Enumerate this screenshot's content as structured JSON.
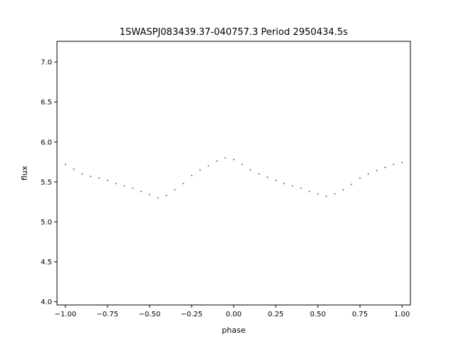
{
  "chart_data": {
    "type": "scatter",
    "title": "1SWASPJ083439.37-040757.3 Period 2950434.5s",
    "xlabel": "phase",
    "ylabel": "flux",
    "xlim": [
      -1.05,
      1.05
    ],
    "ylim": [
      3.96,
      7.26
    ],
    "xticks": [
      -1.0,
      -0.75,
      -0.5,
      -0.25,
      0.0,
      0.25,
      0.5,
      0.75,
      1.0
    ],
    "xtick_labels": [
      "−1.00",
      "−0.75",
      "−0.50",
      "−0.25",
      "0.00",
      "0.25",
      "0.50",
      "0.75",
      "1.00"
    ],
    "yticks": [
      4.0,
      4.5,
      5.0,
      5.5,
      6.0,
      6.5,
      7.0
    ],
    "ytick_labels": [
      "4.0",
      "4.5",
      "5.0",
      "5.5",
      "6.0",
      "6.5",
      "7.0"
    ],
    "grid": false,
    "marker_color": "#1f77b4",
    "series": [
      {
        "x": [
          -1.0,
          -0.95,
          -0.9,
          -0.85,
          -0.8,
          -0.75,
          -0.7,
          -0.65,
          -0.6,
          -0.55,
          -0.5,
          -0.45,
          -0.4,
          -0.35,
          -0.3,
          -0.25,
          -0.2,
          -0.15,
          -0.1,
          -0.05,
          0.0,
          0.05,
          0.1,
          0.15,
          0.2,
          0.25,
          0.3,
          0.35,
          0.4,
          0.45,
          0.5,
          0.55,
          0.6,
          0.65,
          0.7,
          0.75,
          0.8,
          0.85,
          0.9,
          0.95,
          1.0
        ],
        "y": [
          5.72,
          5.66,
          5.6,
          5.57,
          5.55,
          5.52,
          5.48,
          5.45,
          5.42,
          5.38,
          5.34,
          5.3,
          5.33,
          5.4,
          5.48,
          5.58,
          5.65,
          5.7,
          5.76,
          5.8,
          5.78,
          5.72,
          5.65,
          5.6,
          5.56,
          5.52,
          5.48,
          5.45,
          5.42,
          5.38,
          5.35,
          5.32,
          5.35,
          5.4,
          5.47,
          5.55,
          5.6,
          5.64,
          5.68,
          5.72,
          5.74
        ]
      }
    ]
  }
}
